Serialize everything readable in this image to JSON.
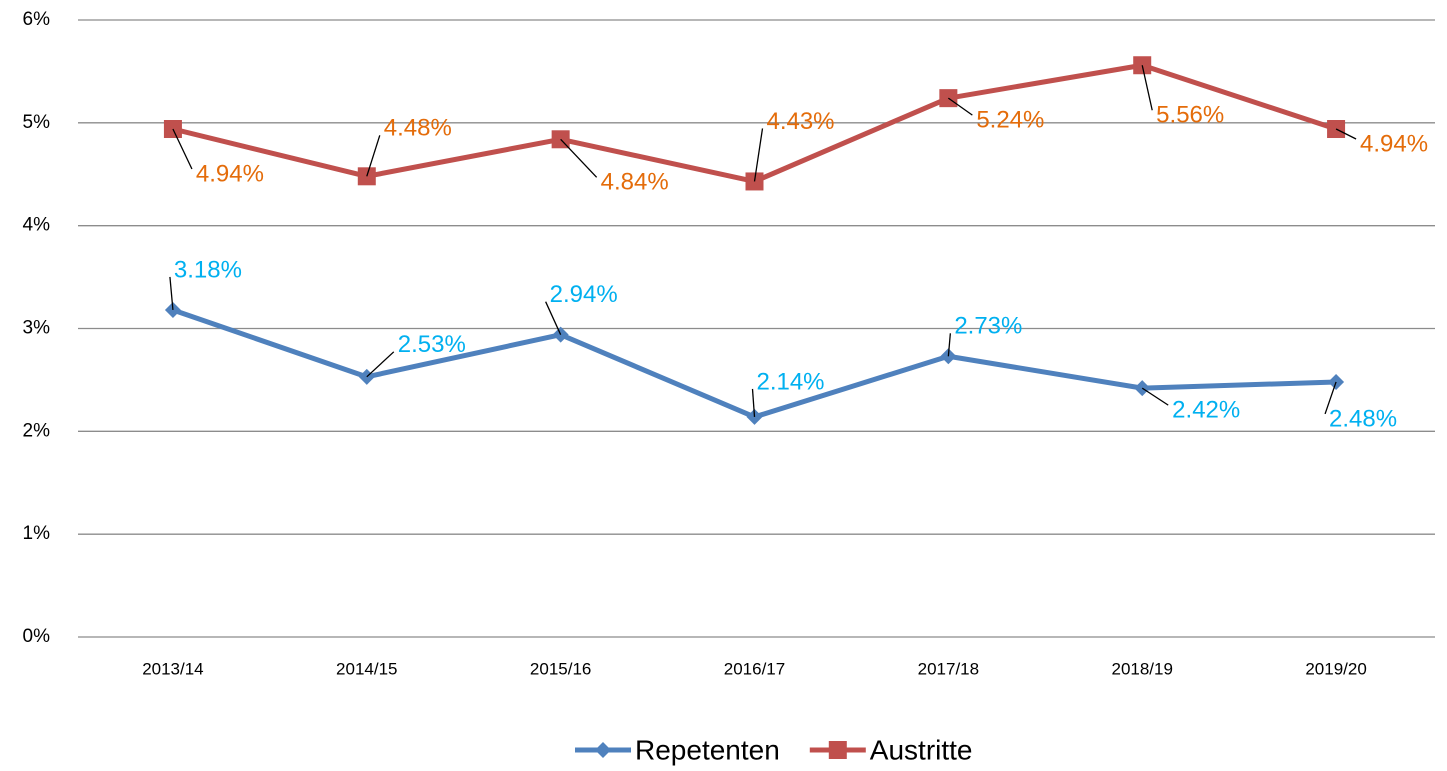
{
  "chart_data": {
    "type": "line",
    "categories": [
      "2013/14",
      "2014/15",
      "2015/16",
      "2016/17",
      "2017/18",
      "2018/19",
      "2019/20"
    ],
    "series": [
      {
        "name": "Repetenten",
        "color": "#4f81bd",
        "label_color": "#00b0f0",
        "marker": "diamond",
        "values": [
          3.18,
          2.53,
          2.94,
          2.14,
          2.73,
          2.42,
          2.48
        ],
        "value_labels": [
          "3.18%",
          "2.53%",
          "2.94%",
          "2.14%",
          "2.73%",
          "2.42%",
          "2.48%"
        ]
      },
      {
        "name": "Austritte",
        "color": "#c0504d",
        "label_color": "#e46c0a",
        "marker": "square",
        "values": [
          4.94,
          4.48,
          4.84,
          4.43,
          5.24,
          5.56,
          4.94
        ],
        "value_labels": [
          "4.94%",
          "4.48%",
          "4.84%",
          "4.43%",
          "5.24%",
          "5.56%",
          "4.94%"
        ]
      }
    ],
    "ylim": [
      0,
      6
    ],
    "yticks": [
      {
        "value": 0,
        "label": "0%"
      },
      {
        "value": 1,
        "label": "1%"
      },
      {
        "value": 2,
        "label": "2%"
      },
      {
        "value": 3,
        "label": "3%"
      },
      {
        "value": 4,
        "label": "4%"
      },
      {
        "value": 5,
        "label": "5%"
      },
      {
        "value": 6,
        "label": "6%"
      }
    ],
    "grid": true,
    "legend": "bottom"
  }
}
